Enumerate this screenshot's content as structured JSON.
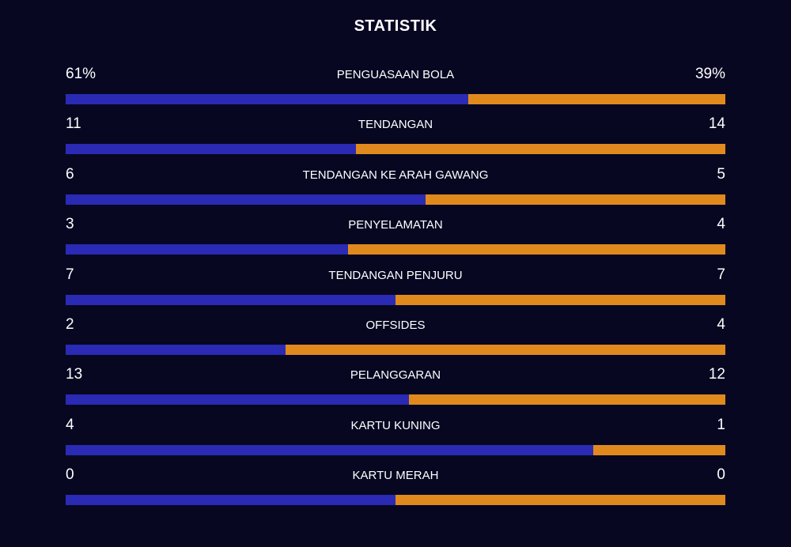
{
  "title": "STATISTIK",
  "colors": {
    "background": "#070722",
    "home": "#2a2ab4",
    "away": "#e08a1e",
    "text": "#ffffff"
  },
  "stats": [
    {
      "label": "PENGUASAAN BOLA",
      "home": "61%",
      "away": "39%",
      "home_share": 0.61
    },
    {
      "label": "TENDANGAN",
      "home": "11",
      "away": "14",
      "home_share": 0.44
    },
    {
      "label": "TENDANGAN KE ARAH GAWANG",
      "home": "6",
      "away": "5",
      "home_share": 0.5455
    },
    {
      "label": "PENYELAMATAN",
      "home": "3",
      "away": "4",
      "home_share": 0.4286
    },
    {
      "label": "TENDANGAN PENJURU",
      "home": "7",
      "away": "7",
      "home_share": 0.5
    },
    {
      "label": "OFFSIDES",
      "home": "2",
      "away": "4",
      "home_share": 0.3333
    },
    {
      "label": "PELANGGARAN",
      "home": "13",
      "away": "12",
      "home_share": 0.52
    },
    {
      "label": "KARTU KUNING",
      "home": "4",
      "away": "1",
      "home_share": 0.8
    },
    {
      "label": "KARTU MERAH",
      "home": "0",
      "away": "0",
      "home_share": 0.5
    }
  ]
}
